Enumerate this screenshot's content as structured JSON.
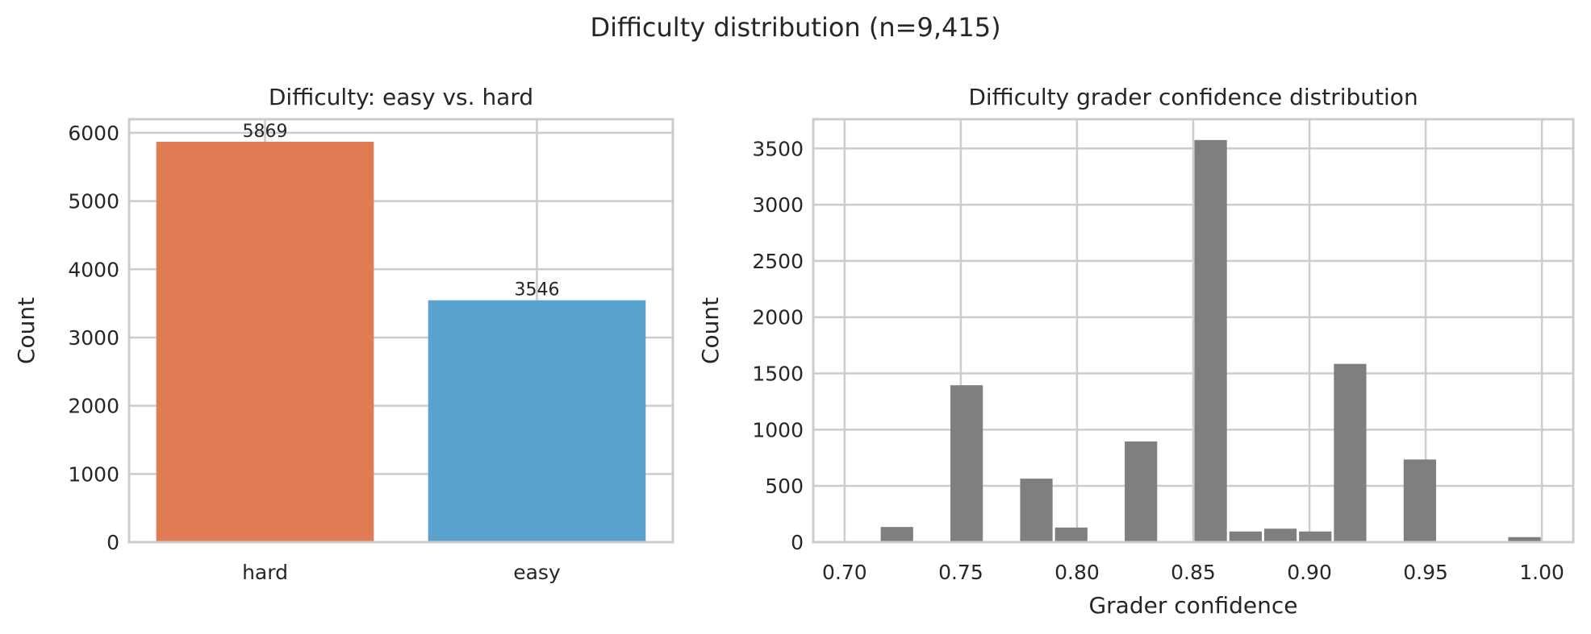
{
  "figure": {
    "title": "Difficulty distribution (n=9,415)"
  },
  "chart_data": [
    {
      "type": "bar",
      "title": "Difficulty: easy vs. hard",
      "xlabel": "",
      "ylabel": "Count",
      "categories": [
        "hard",
        "easy"
      ],
      "values": [
        5869,
        3546
      ],
      "colors": [
        "#e07b54",
        "#5ba3cf"
      ],
      "data_labels": [
        "5869",
        "3546"
      ],
      "ylim": [
        0,
        6200
      ],
      "yticks": [
        0,
        1000,
        2000,
        3000,
        4000,
        5000,
        6000
      ],
      "grid": true
    },
    {
      "type": "bar",
      "title": "Difficulty grader confidence distribution",
      "xlabel": "Grader confidence",
      "ylabel": "Count",
      "bins": [
        [
          0.715,
          0.73,
          135
        ],
        [
          0.745,
          0.76,
          1395
        ],
        [
          0.775,
          0.79,
          565
        ],
        [
          0.79,
          0.805,
          130
        ],
        [
          0.82,
          0.835,
          895
        ],
        [
          0.85,
          0.865,
          3575
        ],
        [
          0.865,
          0.88,
          95
        ],
        [
          0.88,
          0.895,
          120
        ],
        [
          0.895,
          0.91,
          95
        ],
        [
          0.91,
          0.925,
          1585
        ],
        [
          0.94,
          0.955,
          735
        ],
        [
          0.985,
          1.0,
          45
        ]
      ],
      "color": "#7f7f7f",
      "xlim": [
        0.6865,
        1.0135
      ],
      "ylim": [
        0,
        3760
      ],
      "xticks": [
        "0.70",
        "0.75",
        "0.80",
        "0.85",
        "0.90",
        "0.95",
        "1.00"
      ],
      "yticks": [
        0,
        500,
        1000,
        1500,
        2000,
        2500,
        3000,
        3500
      ],
      "grid": true
    }
  ]
}
